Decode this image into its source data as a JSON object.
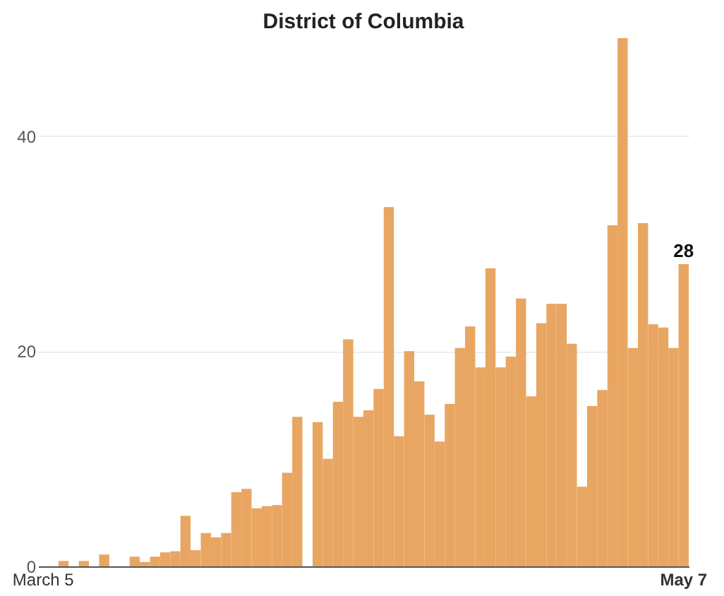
{
  "chart_data": {
    "type": "bar",
    "title": "District of Columbia",
    "categories": [
      "March 5",
      null,
      null,
      null,
      null,
      null,
      null,
      null,
      null,
      null,
      null,
      null,
      null,
      null,
      null,
      null,
      null,
      null,
      null,
      null,
      null,
      null,
      null,
      null,
      null,
      null,
      null,
      null,
      null,
      null,
      null,
      null,
      null,
      null,
      null,
      null,
      null,
      null,
      null,
      null,
      null,
      null,
      null,
      null,
      null,
      null,
      null,
      null,
      null,
      null,
      null,
      null,
      null,
      null,
      null,
      null,
      null,
      null,
      null,
      null,
      null,
      null,
      null,
      "May 7"
    ],
    "values": [
      0,
      0,
      0.5,
      0,
      0.5,
      0,
      1.1,
      0,
      0,
      0.9,
      0.4,
      0.9,
      1.3,
      1.4,
      4.7,
      1.5,
      3.1,
      2.7,
      3.1,
      6.9,
      7.2,
      5.4,
      5.6,
      5.7,
      8.7,
      13.9,
      0,
      13.4,
      10,
      15.3,
      21.1,
      13.9,
      14.5,
      16.5,
      33.4,
      12.1,
      20,
      17.2,
      14.1,
      11.6,
      15.1,
      20.3,
      22.3,
      18.5,
      27.7,
      18.5,
      19.5,
      24.9,
      15.8,
      22.6,
      24.4,
      24.4,
      20.7,
      7.4,
      14.9,
      16.4,
      31.7,
      49.1,
      20.3,
      31.9,
      22.5,
      22.2,
      20.3,
      28.1
    ],
    "color": "#e8a662",
    "ylim": [
      0,
      49.1
    ],
    "yticks": [
      0,
      20,
      40
    ],
    "grid": "y",
    "annotations": [
      {
        "text": "28",
        "x": "May 7",
        "y": 28.1
      }
    ]
  }
}
